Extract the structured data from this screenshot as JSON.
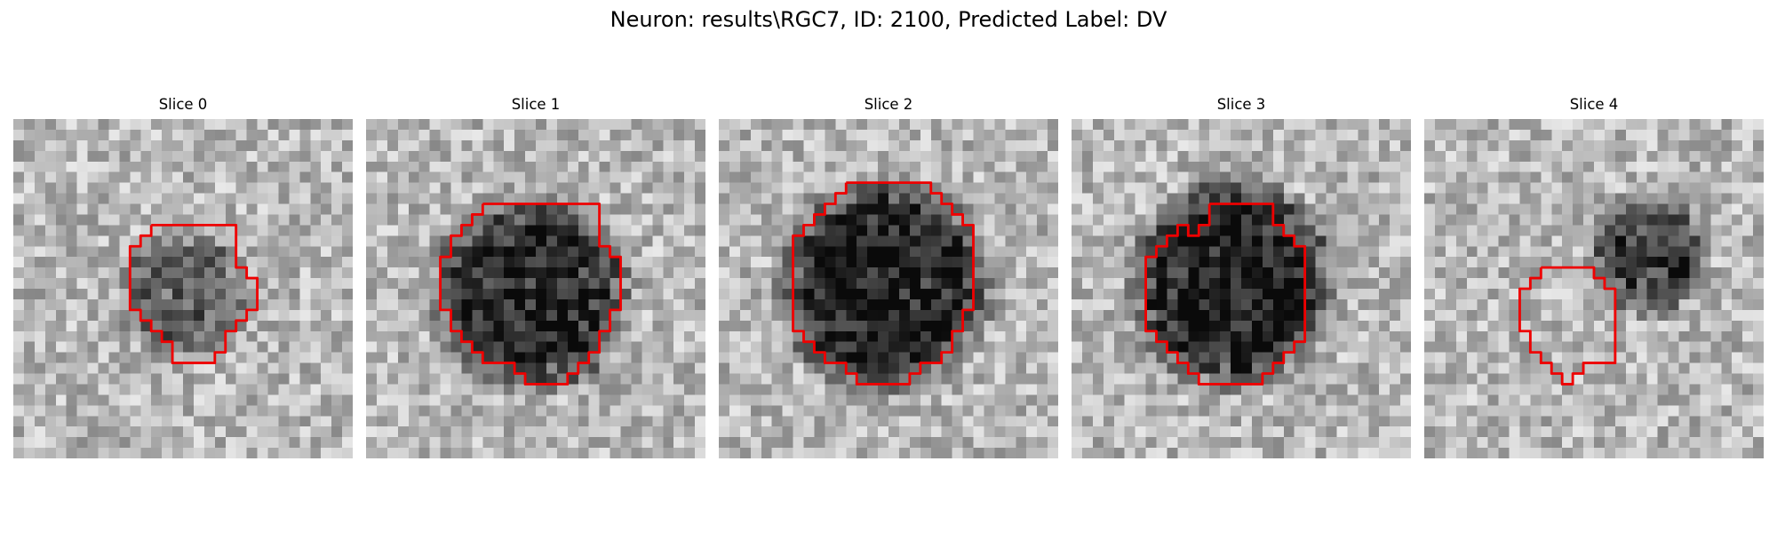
{
  "figure": {
    "title": "Neuron: results\\RGC7, ID: 2100, Predicted Label: DV"
  },
  "panels": [
    {
      "title": "Slice 0",
      "dark_center": [
        8,
        8.2
      ],
      "dark_radius": 3.4,
      "dark_strength": 0.35,
      "contour": [
        [
          6.5,
          5
        ],
        [
          10.5,
          5
        ],
        [
          10.5,
          7
        ],
        [
          11,
          7
        ],
        [
          11,
          7.5
        ],
        [
          11.5,
          7.5
        ],
        [
          11.5,
          9
        ],
        [
          11,
          9
        ],
        [
          11,
          9.5
        ],
        [
          10.5,
          9.5
        ],
        [
          10.5,
          10
        ],
        [
          10,
          10
        ],
        [
          10,
          11
        ],
        [
          9.5,
          11
        ],
        [
          9.5,
          11.5
        ],
        [
          7.5,
          11.5
        ],
        [
          7.5,
          10.5
        ],
        [
          7,
          10.5
        ],
        [
          7,
          10
        ],
        [
          6.5,
          10
        ],
        [
          6.5,
          9.5
        ],
        [
          6,
          9.5
        ],
        [
          6,
          9
        ],
        [
          5.5,
          9
        ],
        [
          5.5,
          6
        ],
        [
          6,
          6
        ],
        [
          6,
          5.5
        ],
        [
          6.5,
          5.5
        ],
        [
          6.5,
          5
        ]
      ]
    },
    {
      "title": "Slice 1",
      "dark_center": [
        7.8,
        8.2
      ],
      "dark_radius": 5.2,
      "dark_strength": 0.55,
      "contour": [
        [
          5.5,
          4
        ],
        [
          11,
          4
        ],
        [
          11,
          6
        ],
        [
          11.5,
          6
        ],
        [
          11.5,
          6.5
        ],
        [
          12,
          6.5
        ],
        [
          12,
          9
        ],
        [
          11.5,
          9
        ],
        [
          11.5,
          10
        ],
        [
          11,
          10
        ],
        [
          11,
          11
        ],
        [
          10.5,
          11
        ],
        [
          10.5,
          11.5
        ],
        [
          10,
          11.5
        ],
        [
          10,
          12
        ],
        [
          9.5,
          12
        ],
        [
          9.5,
          12.5
        ],
        [
          7.5,
          12.5
        ],
        [
          7.5,
          12
        ],
        [
          7,
          12
        ],
        [
          7,
          11.5
        ],
        [
          5.5,
          11.5
        ],
        [
          5.5,
          11
        ],
        [
          5,
          11
        ],
        [
          5,
          10.5
        ],
        [
          4.5,
          10.5
        ],
        [
          4.5,
          10
        ],
        [
          4,
          10
        ],
        [
          4,
          9
        ],
        [
          3.5,
          9
        ],
        [
          3.5,
          6.5
        ],
        [
          4,
          6.5
        ],
        [
          4,
          5.5
        ],
        [
          4.5,
          5.5
        ],
        [
          4.5,
          5
        ],
        [
          5,
          5
        ],
        [
          5,
          4.5
        ],
        [
          5.5,
          4.5
        ],
        [
          5.5,
          4
        ]
      ]
    },
    {
      "title": "Slice 2",
      "dark_center": [
        7.8,
        7.9
      ],
      "dark_radius": 5.6,
      "dark_strength": 0.6,
      "contour": [
        [
          6,
          3
        ],
        [
          10,
          3
        ],
        [
          10,
          3.5
        ],
        [
          10.5,
          3.5
        ],
        [
          10.5,
          4
        ],
        [
          11,
          4
        ],
        [
          11,
          4.5
        ],
        [
          11.5,
          4.5
        ],
        [
          11.5,
          5
        ],
        [
          12,
          5
        ],
        [
          12,
          9
        ],
        [
          11.5,
          9
        ],
        [
          11.5,
          10
        ],
        [
          11,
          10
        ],
        [
          11,
          11
        ],
        [
          10.5,
          11
        ],
        [
          10.5,
          11.5
        ],
        [
          9.5,
          11.5
        ],
        [
          9.5,
          12
        ],
        [
          9,
          12
        ],
        [
          9,
          12.5
        ],
        [
          6.5,
          12.5
        ],
        [
          6.5,
          12
        ],
        [
          6,
          12
        ],
        [
          6,
          11.5
        ],
        [
          5,
          11.5
        ],
        [
          5,
          11
        ],
        [
          4.5,
          11
        ],
        [
          4.5,
          10.5
        ],
        [
          4,
          10.5
        ],
        [
          4,
          10
        ],
        [
          3.5,
          10
        ],
        [
          3.5,
          5.5
        ],
        [
          4,
          5.5
        ],
        [
          4,
          5
        ],
        [
          4.5,
          5
        ],
        [
          4.5,
          4.5
        ],
        [
          5,
          4.5
        ],
        [
          5,
          4
        ],
        [
          5.5,
          4
        ],
        [
          5.5,
          3.5
        ],
        [
          6,
          3.5
        ],
        [
          6,
          3
        ]
      ]
    },
    {
      "title": "Slice 3",
      "dark_center": [
        7.6,
        7.8
      ],
      "dark_radius": 5.4,
      "dark_strength": 0.6,
      "contour": [
        [
          6.5,
          4
        ],
        [
          9.5,
          4
        ],
        [
          9.5,
          5
        ],
        [
          10,
          5
        ],
        [
          10,
          5.5
        ],
        [
          10.5,
          5.5
        ],
        [
          10.5,
          6
        ],
        [
          11,
          6
        ],
        [
          11,
          10.5
        ],
        [
          10.5,
          10.5
        ],
        [
          10.5,
          11
        ],
        [
          10,
          11
        ],
        [
          10,
          11.5
        ],
        [
          9.5,
          11.5
        ],
        [
          9.5,
          12
        ],
        [
          9,
          12
        ],
        [
          9,
          12.5
        ],
        [
          6,
          12.5
        ],
        [
          6,
          12
        ],
        [
          5.5,
          12
        ],
        [
          5.5,
          11.5
        ],
        [
          5,
          11.5
        ],
        [
          5,
          11
        ],
        [
          4.5,
          11
        ],
        [
          4.5,
          10.5
        ],
        [
          4,
          10.5
        ],
        [
          4,
          10
        ],
        [
          3.5,
          10
        ],
        [
          3.5,
          6.5
        ],
        [
          4,
          6.5
        ],
        [
          4,
          6
        ],
        [
          4.5,
          6
        ],
        [
          4.5,
          5.5
        ],
        [
          5,
          5.5
        ],
        [
          5,
          5
        ],
        [
          5.5,
          5
        ],
        [
          5.5,
          5.5
        ],
        [
          6,
          5.5
        ],
        [
          6,
          5
        ],
        [
          6.5,
          5
        ],
        [
          6.5,
          4
        ]
      ]
    },
    {
      "title": "Slice 4",
      "dark_center": [
        10.5,
        6.5
      ],
      "dark_radius": 3.2,
      "dark_strength": 0.45,
      "contour": [
        [
          5.5,
          7
        ],
        [
          8,
          7
        ],
        [
          8,
          7.5
        ],
        [
          8.5,
          7.5
        ],
        [
          8.5,
          8
        ],
        [
          9,
          8
        ],
        [
          9,
          11.5
        ],
        [
          7.5,
          11.5
        ],
        [
          7.5,
          12
        ],
        [
          7,
          12
        ],
        [
          7,
          12.5
        ],
        [
          6.5,
          12.5
        ],
        [
          6.5,
          12
        ],
        [
          6,
          12
        ],
        [
          6,
          11.5
        ],
        [
          5.5,
          11.5
        ],
        [
          5.5,
          11
        ],
        [
          5,
          11
        ],
        [
          5,
          10
        ],
        [
          4.5,
          10
        ],
        [
          4.5,
          9.5
        ],
        [
          4.5,
          9
        ],
        [
          4.5,
          8.5
        ],
        [
          4.5,
          8
        ],
        [
          5,
          8
        ],
        [
          5,
          7.5
        ],
        [
          5.5,
          7.5
        ],
        [
          5.5,
          7
        ]
      ]
    }
  ],
  "colors": {
    "contour": "#ee0000",
    "background": "#ffffff"
  }
}
